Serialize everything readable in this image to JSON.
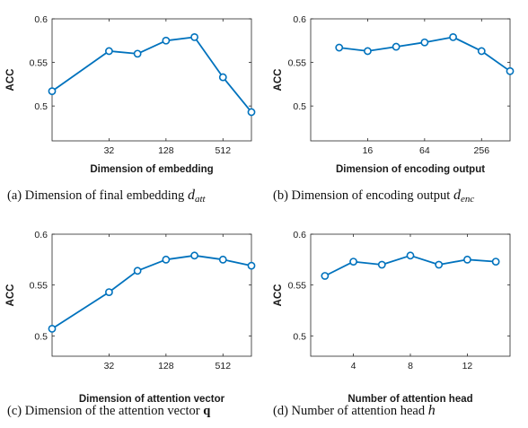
{
  "chart_data": [
    {
      "type": "line",
      "x": [
        8,
        32,
        64,
        128,
        256,
        512,
        1024
      ],
      "x_scale": "log2",
      "xticks": [
        "32",
        "128",
        "512"
      ],
      "xticks_values": [
        32,
        128,
        512
      ],
      "xlim": [
        8,
        1024
      ],
      "values": [
        0.517,
        0.563,
        0.56,
        0.575,
        0.579,
        0.533,
        0.493
      ],
      "ylim": [
        0.46,
        0.6
      ],
      "yticks": [
        "0.5",
        "0.55",
        "0.6"
      ],
      "yticks_values": [
        0.5,
        0.55,
        0.6
      ],
      "xlabel": "Dimension of embedding",
      "ylabel": "ACC",
      "caption": {
        "prefix": "(a)  Dimension of final embedding ",
        "sym": "d",
        "sub": "att",
        "suffix": ""
      },
      "color": "#0072BD",
      "grid": false,
      "marker": "circle"
    },
    {
      "type": "line",
      "x": [
        8,
        16,
        32,
        64,
        128,
        256,
        512
      ],
      "x_scale": "log2",
      "xticks": [
        "16",
        "64",
        "256"
      ],
      "xticks_values": [
        16,
        64,
        256
      ],
      "xlim": [
        4,
        512
      ],
      "values": [
        0.567,
        0.563,
        0.568,
        0.573,
        0.579,
        0.563,
        0.54
      ],
      "ylim": [
        0.46,
        0.6
      ],
      "yticks": [
        "0.5",
        "0.55",
        "0.6"
      ],
      "yticks_values": [
        0.5,
        0.55,
        0.6
      ],
      "xlabel": "Dimension of encoding output",
      "ylabel": "ACC",
      "caption": {
        "prefix": "(b)  Dimension of encoding output ",
        "sym": "d",
        "sub": "enc",
        "suffix": ""
      },
      "color": "#0072BD",
      "grid": false,
      "marker": "circle"
    },
    {
      "type": "line",
      "x": [
        8,
        32,
        64,
        128,
        256,
        512,
        1024
      ],
      "x_scale": "log2",
      "xticks": [
        "32",
        "128",
        "512"
      ],
      "xticks_values": [
        32,
        128,
        512
      ],
      "xlim": [
        8,
        1024
      ],
      "values": [
        0.507,
        0.543,
        0.564,
        0.575,
        0.579,
        0.575,
        0.569
      ],
      "ylim": [
        0.48,
        0.6
      ],
      "yticks": [
        "0.5",
        "0.55",
        "0.6"
      ],
      "yticks_values": [
        0.5,
        0.55,
        0.6
      ],
      "xlabel": "Dimension of attention vector",
      "ylabel": "ACC",
      "caption": {
        "prefix": "(c)  Dimension of the attention vector ",
        "sym": "q",
        "sub": "",
        "suffix": ""
      },
      "color": "#0072BD",
      "grid": false,
      "marker": "circle"
    },
    {
      "type": "line",
      "x": [
        2,
        4,
        6,
        8,
        10,
        12,
        14
      ],
      "x_scale": "linear",
      "xticks": [
        "4",
        "8",
        "12"
      ],
      "xticks_values": [
        4,
        8,
        12
      ],
      "xlim": [
        1,
        15
      ],
      "values": [
        0.559,
        0.573,
        0.57,
        0.579,
        0.57,
        0.575,
        0.573
      ],
      "ylim": [
        0.48,
        0.6
      ],
      "yticks": [
        "0.5",
        "0.55",
        "0.6"
      ],
      "yticks_values": [
        0.5,
        0.55,
        0.6
      ],
      "xlabel": "Number of attention head",
      "ylabel": "ACC",
      "caption": {
        "prefix": "(d)  Number of attention head ",
        "sym": "h",
        "sub": "",
        "suffix": ""
      },
      "color": "#0072BD",
      "grid": false,
      "marker": "circle"
    }
  ]
}
